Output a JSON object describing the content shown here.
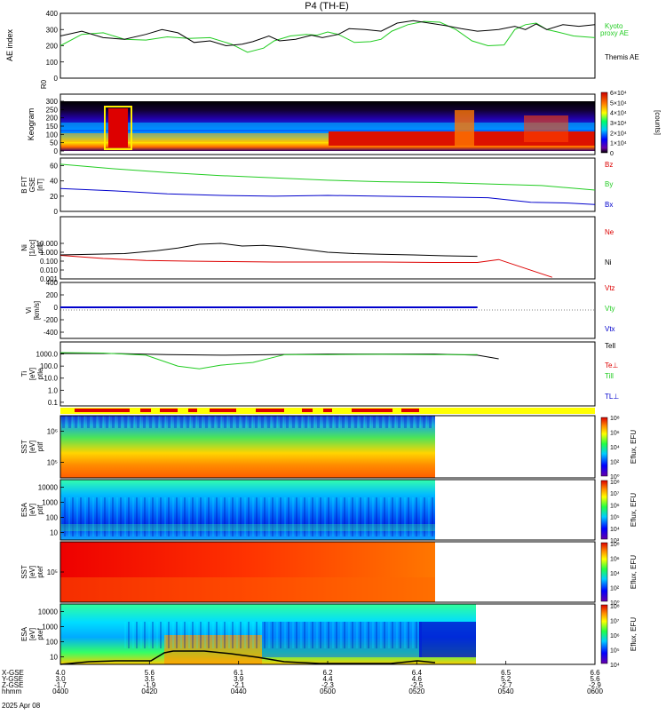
{
  "title": "P4  (TH-E)",
  "colors": {
    "kyoto": "#22cc22",
    "themis": "#000000",
    "bz": "#dd0000",
    "by": "#22cc22",
    "bx": "#0000cc",
    "tpar": "#0000cc"
  },
  "chart_data": [
    {
      "type": "line",
      "name": "ae-index",
      "ylabel": "AE index",
      "ylim": [
        0,
        400
      ],
      "yticks": [
        "0",
        "100",
        "200",
        "300",
        "400"
      ],
      "series": [
        {
          "name": "Kyoto proxy AE",
          "label_lines": [
            "Kyoto",
            "proxy AE"
          ],
          "color": "#22cc22",
          "values": [
            [
              0,
              200
            ],
            [
              4,
              270
            ],
            [
              8,
              280
            ],
            [
              12,
              240
            ],
            [
              16,
              235
            ],
            [
              20,
              255
            ],
            [
              24,
              245
            ],
            [
              28,
              250
            ],
            [
              32,
              210
            ],
            [
              35,
              160
            ],
            [
              38,
              185
            ],
            [
              40,
              230
            ],
            [
              43,
              260
            ],
            [
              46,
              270
            ],
            [
              48,
              265
            ],
            [
              50,
              285
            ],
            [
              52,
              270
            ],
            [
              55,
              220
            ],
            [
              58,
              225
            ],
            [
              60,
              240
            ],
            [
              62,
              290
            ],
            [
              65,
              330
            ],
            [
              68,
              350
            ],
            [
              71,
              345
            ],
            [
              74,
              300
            ],
            [
              77,
              230
            ],
            [
              80,
              200
            ],
            [
              83,
              205
            ],
            [
              85,
              300
            ],
            [
              87,
              330
            ],
            [
              89,
              340
            ],
            [
              91,
              300
            ],
            [
              93,
              285
            ],
            [
              96,
              260
            ],
            [
              100,
              250
            ]
          ]
        },
        {
          "name": "Themis AE",
          "label_lines": [
            "Themis AE"
          ],
          "color": "#000000",
          "values": [
            [
              0,
              260
            ],
            [
              4,
              290
            ],
            [
              8,
              250
            ],
            [
              12,
              240
            ],
            [
              16,
              270
            ],
            [
              19,
              300
            ],
            [
              22,
              280
            ],
            [
              25,
              220
            ],
            [
              28,
              230
            ],
            [
              31,
              200
            ],
            [
              34,
              210
            ],
            [
              36,
              225
            ],
            [
              39,
              260
            ],
            [
              41,
              230
            ],
            [
              44,
              240
            ],
            [
              47,
              265
            ],
            [
              49,
              250
            ],
            [
              52,
              270
            ],
            [
              54,
              305
            ],
            [
              57,
              300
            ],
            [
              60,
              290
            ],
            [
              63,
              340
            ],
            [
              66,
              355
            ],
            [
              69,
              340
            ],
            [
              72,
              325
            ],
            [
              75,
              305
            ],
            [
              78,
              290
            ],
            [
              80,
              295
            ],
            [
              82,
              300
            ],
            [
              85,
              320
            ],
            [
              87,
              300
            ],
            [
              89,
              335
            ],
            [
              91,
              300
            ],
            [
              94,
              330
            ],
            [
              97,
              320
            ],
            [
              100,
              330
            ]
          ]
        }
      ]
    },
    {
      "type": "heatmap",
      "name": "keogram",
      "ylabel": "Keogram",
      "ylabel_top": "R0",
      "yticks": [
        "0",
        "50",
        "100",
        "150",
        "200",
        "250",
        "300"
      ],
      "ylim": [
        0,
        300
      ],
      "colorbar": {
        "ticks": [
          "0",
          "1×10⁴",
          "2×10⁴",
          "3×10⁴",
          "4×10⁴",
          "5×10⁴",
          "6×10⁴"
        ],
        "label": "[counts]"
      }
    },
    {
      "type": "line",
      "name": "b-field",
      "ylabel_lines": [
        "B FIT",
        "GSE",
        "[nT]"
      ],
      "ylim": [
        0,
        70
      ],
      "yticks": [
        "0",
        "20",
        "40",
        "60"
      ],
      "series": [
        {
          "name": "Bz",
          "color": "#dd0000",
          "values": [
            [
              0,
              0
            ],
            [
              100,
              0
            ]
          ]
        },
        {
          "name": "By",
          "color": "#22cc22",
          "values": [
            [
              0,
              62
            ],
            [
              10,
              56
            ],
            [
              20,
              51
            ],
            [
              30,
              47
            ],
            [
              40,
              44
            ],
            [
              50,
              41
            ],
            [
              60,
              39
            ],
            [
              70,
              38
            ],
            [
              80,
              36
            ],
            [
              90,
              34
            ],
            [
              100,
              28
            ]
          ]
        },
        {
          "name": "Bx",
          "color": "#0000cc",
          "values": [
            [
              0,
              30
            ],
            [
              10,
              27
            ],
            [
              20,
              23
            ],
            [
              30,
              21
            ],
            [
              40,
              20
            ],
            [
              50,
              21
            ],
            [
              60,
              20
            ],
            [
              70,
              19
            ],
            [
              80,
              18
            ],
            [
              88,
              12
            ],
            [
              95,
              11
            ],
            [
              100,
              9
            ]
          ]
        }
      ]
    },
    {
      "type": "line",
      "name": "density",
      "ylabel_lines": [
        "Ni",
        "[1/cc]",
        "ptle"
      ],
      "ylog": true,
      "ylim": [
        0.001,
        10000
      ],
      "yticks": [
        "0.001",
        "0.010",
        "0.100",
        "1.000",
        "10.000"
      ],
      "series": [
        {
          "name": "Ne",
          "color": "#dd0000",
          "values": [
            [
              0,
              0.45
            ],
            [
              8,
              0.2
            ],
            [
              16,
              0.12
            ],
            [
              24,
              0.1
            ],
            [
              32,
              0.09
            ],
            [
              40,
              0.08
            ],
            [
              50,
              0.08
            ],
            [
              60,
              0.08
            ],
            [
              70,
              0.07
            ],
            [
              78,
              0.07
            ],
            [
              82,
              0.15
            ],
            [
              92,
              0.0015
            ]
          ]
        },
        {
          "name": "Ni",
          "color": "#000000",
          "values": [
            [
              0,
              0.5
            ],
            [
              6,
              0.6
            ],
            [
              12,
              0.7
            ],
            [
              18,
              1.5
            ],
            [
              22,
              3
            ],
            [
              26,
              8
            ],
            [
              30,
              10
            ],
            [
              34,
              5
            ],
            [
              38,
              6
            ],
            [
              42,
              4
            ],
            [
              46,
              2
            ],
            [
              50,
              1
            ],
            [
              55,
              0.7
            ],
            [
              60,
              0.6
            ],
            [
              66,
              0.5
            ],
            [
              72,
              0.4
            ],
            [
              78,
              0.35
            ]
          ]
        }
      ]
    },
    {
      "type": "line",
      "name": "velocity",
      "ylabel_lines": [
        "Vi",
        "[km/s]"
      ],
      "ylim": [
        -500,
        400
      ],
      "yticks": [
        "-400",
        "-200",
        "0",
        "200",
        "400"
      ],
      "series": [
        {
          "name": "Vtz",
          "color": "#dd0000",
          "values": [
            [
              0,
              0
            ],
            [
              78,
              0
            ]
          ]
        },
        {
          "name": "Vty",
          "color": "#22cc22",
          "values": [
            [
              0,
              0
            ],
            [
              78,
              0
            ]
          ]
        },
        {
          "name": "Vtx",
          "color": "#0000cc",
          "values": [
            [
              0,
              0
            ],
            [
              78,
              0
            ]
          ]
        }
      ]
    },
    {
      "type": "line",
      "name": "temperature",
      "ylabel_lines": [
        "Ti",
        "[eV]",
        "ptle"
      ],
      "ylog": true,
      "ylim": [
        0.05,
        10000
      ],
      "yticks": [
        "0.1",
        "1.0",
        "10.0",
        "100.0",
        "1000.0"
      ],
      "series": [
        {
          "name": "Tell",
          "color": "#000000",
          "values": [
            [
              0,
              1100
            ],
            [
              10,
              1100
            ],
            [
              20,
              900
            ],
            [
              30,
              800
            ],
            [
              40,
              900
            ],
            [
              50,
              1000
            ],
            [
              60,
              1000
            ],
            [
              70,
              1000
            ],
            [
              78,
              800
            ],
            [
              82,
              400
            ]
          ]
        },
        {
          "name": "Te⊥",
          "color": "#dd0000",
          "values": [
            [
              0,
              0
            ],
            [
              80,
              0
            ]
          ]
        },
        {
          "name": "Till",
          "color": "#22cc22",
          "values": [
            [
              0,
              1300
            ],
            [
              8,
              1200
            ],
            [
              16,
              800
            ],
            [
              22,
              100
            ],
            [
              26,
              60
            ],
            [
              30,
              120
            ],
            [
              36,
              200
            ],
            [
              42,
              900
            ],
            [
              50,
              900
            ],
            [
              60,
              950
            ],
            [
              70,
              900
            ],
            [
              78,
              900
            ]
          ]
        },
        {
          "name": "TL⊥",
          "color": "#0000cc",
          "values": [
            [
              0,
              0
            ],
            [
              80,
              0
            ]
          ]
        }
      ]
    },
    {
      "type": "heatmap",
      "name": "sst-ion",
      "ylabel_lines": [
        "SST",
        "[eV]",
        "ptif"
      ],
      "yticks": [
        "10⁵",
        "10⁶"
      ],
      "colorbar": {
        "ticks": [
          "10⁰",
          "10²",
          "10⁴",
          "10⁶",
          "10⁸"
        ],
        "label": "Eflux, EFU"
      }
    },
    {
      "type": "heatmap",
      "name": "esa-ion",
      "ylabel_lines": [
        "ESA",
        "[eV]",
        "ptif"
      ],
      "yticks": [
        "10",
        "100",
        "1000",
        "10000"
      ],
      "colorbar": {
        "ticks": [
          "10³",
          "10⁴",
          "10⁵",
          "10⁶",
          "10⁷",
          "10⁸"
        ],
        "label": "Eflux, EFU"
      }
    },
    {
      "type": "heatmap",
      "name": "sst-electron",
      "ylabel_lines": [
        "SST",
        "[eV]",
        "ptef"
      ],
      "yticks": [
        "10⁵"
      ],
      "colorbar": {
        "ticks": [
          "10⁰",
          "10²",
          "10⁴",
          "10⁶",
          "10⁸"
        ],
        "label": "Eflux, EFU"
      }
    },
    {
      "type": "heatmap",
      "name": "esa-electron",
      "ylabel_lines": [
        "ESA",
        "[eV]",
        "ptef"
      ],
      "yticks": [
        "10",
        "100",
        "1000",
        "10000"
      ],
      "colorbar": {
        "ticks": [
          "10⁴",
          "10⁵",
          "10⁶",
          "10⁷",
          "10⁸"
        ],
        "label": "Eflux, EFU"
      }
    }
  ],
  "xaxis": {
    "rows": [
      {
        "label": "X-GSE",
        "values": [
          "4.0",
          "5.6",
          "6.1",
          "6.2",
          "6.4",
          "6.5",
          "6.6"
        ]
      },
      {
        "label": "Y-GSE",
        "values": [
          "3.0",
          "3.5",
          "3.9",
          "4.4",
          "4.6",
          "5.2",
          "5.6"
        ]
      },
      {
        "label": "Z-GSE",
        "values": [
          "-1.7",
          "-1.9",
          "-2.1",
          "-2.3",
          "-2.5",
          "-2.7",
          "-2.9"
        ]
      },
      {
        "label": "hhmm",
        "values": [
          "0400",
          "0420",
          "0440",
          "0500",
          "0520",
          "0540",
          "0600"
        ]
      }
    ],
    "date": "2025 Apr 08"
  }
}
